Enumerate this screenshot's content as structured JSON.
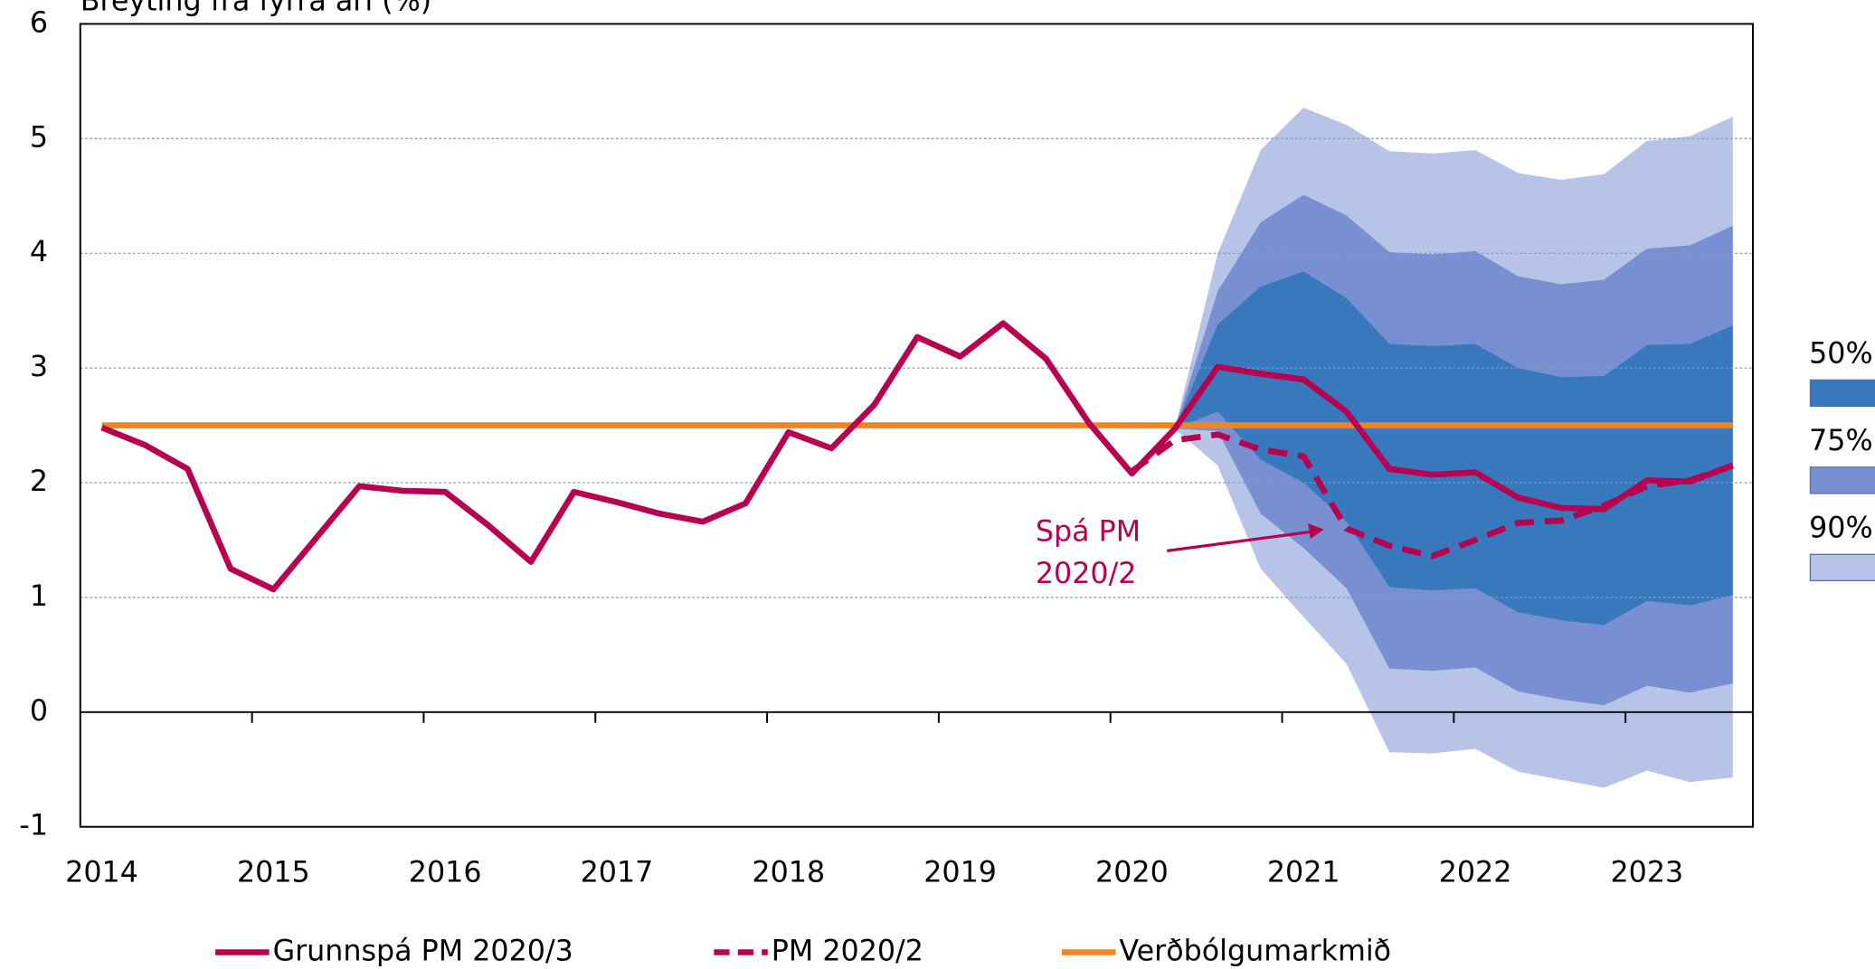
{
  "chart_data": {
    "type": "line",
    "y_axis_label": "Breyting frá fyrra ári (%)",
    "categories": [
      "2014",
      null,
      null,
      null,
      "2015",
      null,
      null,
      null,
      "2016",
      null,
      null,
      null,
      "2017",
      null,
      null,
      null,
      "2018",
      null,
      null,
      null,
      "2019",
      null,
      null,
      null,
      "2020",
      null,
      null,
      null,
      "2021",
      null,
      null,
      null,
      "2022",
      null,
      null,
      null,
      "2023",
      null,
      null
    ],
    "ylim": [
      -1,
      6
    ],
    "yticks": [
      -1,
      0,
      1,
      2,
      3,
      4,
      5,
      6
    ],
    "grid": true,
    "series": [
      {
        "name": "Grunnspá PM 2020/3",
        "color": "#b7004f",
        "dash": false,
        "values": [
          2.48,
          2.33,
          2.12,
          1.25,
          1.07,
          1.52,
          1.97,
          1.93,
          1.92,
          1.63,
          1.31,
          1.92,
          1.83,
          1.73,
          1.66,
          1.82,
          2.44,
          2.3,
          2.68,
          3.27,
          3.1,
          3.39,
          3.08,
          2.52,
          2.08,
          2.47,
          3.01,
          2.95,
          2.9,
          2.62,
          2.12,
          2.07,
          2.09,
          1.87,
          1.78,
          1.77,
          2.02,
          2.01,
          2.15
        ]
      },
      {
        "name": "PM 2020/2",
        "color": "#b7004f",
        "dash": true,
        "values": [
          null,
          null,
          null,
          null,
          null,
          null,
          null,
          null,
          null,
          null,
          null,
          null,
          null,
          null,
          null,
          null,
          null,
          null,
          null,
          null,
          null,
          null,
          null,
          null,
          2.1,
          2.37,
          2.42,
          2.29,
          2.23,
          1.6,
          1.45,
          1.36,
          1.5,
          1.65,
          1.67,
          1.8,
          1.97,
          2.02,
          2.15
        ]
      },
      {
        "name": "Verðbólgumarkmið",
        "color": "#f5841f",
        "dash": false,
        "values": [
          2.5,
          2.5,
          2.5,
          2.5,
          2.5,
          2.5,
          2.5,
          2.5,
          2.5,
          2.5,
          2.5,
          2.5,
          2.5,
          2.5,
          2.5,
          2.5,
          2.5,
          2.5,
          2.5,
          2.5,
          2.5,
          2.5,
          2.5,
          2.5,
          2.5,
          2.5,
          2.5,
          2.5,
          2.5,
          2.5,
          2.5,
          2.5,
          2.5,
          2.5,
          2.5,
          2.5,
          2.5,
          2.5,
          2.5
        ]
      }
    ],
    "bands": [
      {
        "name": "50%",
        "color": "#3878bd",
        "lower": [
          null,
          null,
          null,
          null,
          null,
          null,
          null,
          null,
          null,
          null,
          null,
          null,
          null,
          null,
          null,
          null,
          null,
          null,
          null,
          null,
          null,
          null,
          null,
          null,
          null,
          2.47,
          2.62,
          2.2,
          2.0,
          1.66,
          1.09,
          1.06,
          1.08,
          0.87,
          0.8,
          0.76,
          0.97,
          0.93,
          1.02
        ],
        "upper": [
          null,
          null,
          null,
          null,
          null,
          null,
          null,
          null,
          null,
          null,
          null,
          null,
          null,
          null,
          null,
          null,
          null,
          null,
          null,
          null,
          null,
          null,
          null,
          null,
          null,
          2.47,
          3.38,
          3.71,
          3.84,
          3.61,
          3.21,
          3.19,
          3.21,
          3.0,
          2.92,
          2.93,
          3.2,
          3.21,
          3.37
        ]
      },
      {
        "name": "75%",
        "color": "#7890d2",
        "lower": [
          null,
          null,
          null,
          null,
          null,
          null,
          null,
          null,
          null,
          null,
          null,
          null,
          null,
          null,
          null,
          null,
          null,
          null,
          null,
          null,
          null,
          null,
          null,
          null,
          null,
          2.47,
          2.45,
          1.73,
          1.43,
          1.08,
          0.38,
          0.36,
          0.39,
          0.18,
          0.11,
          0.06,
          0.23,
          0.17,
          0.25
        ],
        "upper": [
          null,
          null,
          null,
          null,
          null,
          null,
          null,
          null,
          null,
          null,
          null,
          null,
          null,
          null,
          null,
          null,
          null,
          null,
          null,
          null,
          null,
          null,
          null,
          null,
          null,
          2.47,
          3.67,
          4.27,
          4.51,
          4.33,
          4.01,
          3.99,
          4.02,
          3.8,
          3.73,
          3.77,
          4.04,
          4.07,
          4.24
        ]
      },
      {
        "name": "90%",
        "color": "#b8c4e7",
        "lower": [
          null,
          null,
          null,
          null,
          null,
          null,
          null,
          null,
          null,
          null,
          null,
          null,
          null,
          null,
          null,
          null,
          null,
          null,
          null,
          null,
          null,
          null,
          null,
          null,
          null,
          2.47,
          2.15,
          1.25,
          0.83,
          0.42,
          -0.35,
          -0.36,
          -0.32,
          -0.52,
          -0.59,
          -0.66,
          -0.51,
          -0.61,
          -0.57
        ],
        "upper": [
          null,
          null,
          null,
          null,
          null,
          null,
          null,
          null,
          null,
          null,
          null,
          null,
          null,
          null,
          null,
          null,
          null,
          null,
          null,
          null,
          null,
          null,
          null,
          null,
          null,
          2.47,
          4.0,
          4.9,
          5.27,
          5.12,
          4.89,
          4.87,
          4.9,
          4.7,
          4.64,
          4.69,
          4.98,
          5.02,
          5.19
        ]
      }
    ],
    "annotation": [
      "Spá PM",
      "2020/2"
    ]
  }
}
